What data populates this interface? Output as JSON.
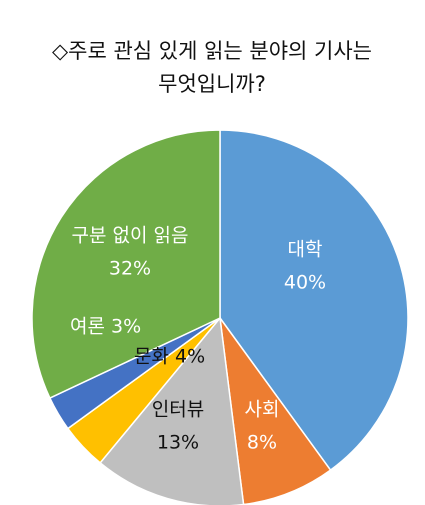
{
  "chart_data": {
    "type": "pie",
    "title": [
      "◇주로 관심 있게 읽는 분야의 기사는",
      "무엇입니까?"
    ],
    "categories": [
      "대학",
      "사회",
      "인터뷰",
      "문화",
      "여론",
      "구분 없이 읽음"
    ],
    "values": [
      40,
      8,
      13,
      4,
      3,
      32
    ],
    "value_labels": [
      "40%",
      "8%",
      "13%",
      "4%",
      "3%",
      "32%"
    ],
    "colors": [
      "#5b9bd5",
      "#ed7d31",
      "#bfbfbf",
      "#ffc000",
      "#4472c4",
      "#70ad47"
    ]
  }
}
